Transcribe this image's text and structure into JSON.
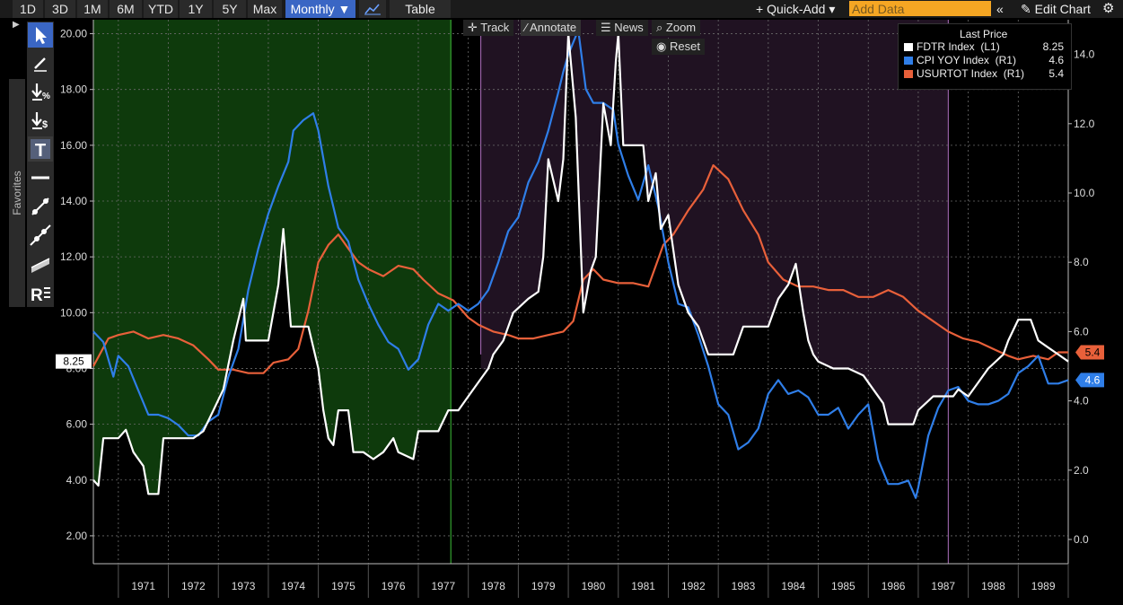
{
  "toolbar": {
    "ranges": [
      "1D",
      "3D",
      "1M",
      "6M",
      "YTD",
      "1Y",
      "5Y",
      "Max"
    ],
    "frequency": "Monthly ▼",
    "table_label": "Table",
    "quick_add": "+ Quick-Add ▾",
    "add_data_placeholder": "Add Data",
    "collapse": "«",
    "edit_chart": "✎ Edit Chart",
    "gear": "⚙"
  },
  "chart_toolbar": {
    "track": "Track",
    "annotate": "Annotate",
    "news": "News",
    "zoom": "Zoom",
    "reset": "Reset"
  },
  "palette": {
    "favorites": "Favorites"
  },
  "legend": {
    "header": "Last Price",
    "items": [
      {
        "name": "FDTR Index  (L1)",
        "value": "8.25",
        "color": "#ffffff"
      },
      {
        "name": "CPI YOY Index  (R1)",
        "value": "4.6",
        "color": "#2f7ee8"
      },
      {
        "name": "USURTOT Index  (R1)",
        "value": "5.4",
        "color": "#e8603a"
      }
    ]
  },
  "chart_data": {
    "type": "line",
    "x_range": [
      1970.5,
      1990.0
    ],
    "x_ticks": [
      "1971",
      "1972",
      "1973",
      "1974",
      "1975",
      "1976",
      "1977",
      "1978",
      "1979",
      "1980",
      "1981",
      "1982",
      "1983",
      "1984",
      "1985",
      "1986",
      "1987",
      "1988",
      "1989"
    ],
    "y_left": {
      "range": [
        1.0,
        20.5
      ],
      "ticks": [
        "2.00",
        "4.00",
        "6.00",
        "8.00",
        "10.00",
        "12.00",
        "14.00",
        "16.00",
        "18.00",
        "20.00"
      ]
    },
    "y_right": {
      "range": [
        -0.7,
        15.0
      ],
      "ticks": [
        "0.0",
        "2.0",
        "4.0",
        "6.0",
        "8.0",
        "10.0",
        "12.0",
        "14.0"
      ]
    },
    "last_value_tags": {
      "left": "8.25",
      "right_cpi": "4.6",
      "right_unemp": "5.4"
    },
    "shaded_regions": [
      {
        "x0": 1970.5,
        "x1": 1977.65,
        "color": "#0e3a0c"
      },
      {
        "x0": 1978.25,
        "x1": 1987.6,
        "color": "#201222"
      }
    ],
    "series": [
      {
        "name": "FDTR Index (L1)",
        "axis": "left",
        "color": "#ffffff",
        "points": [
          [
            1970.5,
            4.0
          ],
          [
            1970.6,
            3.8
          ],
          [
            1970.7,
            5.5
          ],
          [
            1971.0,
            5.5
          ],
          [
            1971.15,
            5.8
          ],
          [
            1971.3,
            5.0
          ],
          [
            1971.5,
            4.5
          ],
          [
            1971.6,
            3.5
          ],
          [
            1971.8,
            3.5
          ],
          [
            1971.9,
            5.5
          ],
          [
            1972.5,
            5.5
          ],
          [
            1972.7,
            5.75
          ],
          [
            1972.9,
            6.5
          ],
          [
            1973.1,
            7.25
          ],
          [
            1973.3,
            9.0
          ],
          [
            1973.5,
            10.5
          ],
          [
            1973.55,
            9.0
          ],
          [
            1974.0,
            9.0
          ],
          [
            1974.1,
            10.0
          ],
          [
            1974.2,
            11.0
          ],
          [
            1974.3,
            13.0
          ],
          [
            1974.45,
            9.5
          ],
          [
            1974.8,
            9.5
          ],
          [
            1975.0,
            8.0
          ],
          [
            1975.1,
            6.5
          ],
          [
            1975.2,
            5.5
          ],
          [
            1975.3,
            5.25
          ],
          [
            1975.4,
            6.5
          ],
          [
            1975.6,
            6.5
          ],
          [
            1975.7,
            5.0
          ],
          [
            1975.9,
            5.0
          ],
          [
            1976.1,
            4.75
          ],
          [
            1976.3,
            5.0
          ],
          [
            1976.5,
            5.5
          ],
          [
            1976.6,
            5.0
          ],
          [
            1976.9,
            4.75
          ],
          [
            1977.0,
            5.75
          ],
          [
            1977.4,
            5.75
          ],
          [
            1977.6,
            6.5
          ],
          [
            1977.8,
            6.5
          ],
          [
            1978.0,
            7.0
          ],
          [
            1978.2,
            7.5
          ],
          [
            1978.4,
            8.0
          ],
          [
            1978.5,
            8.5
          ],
          [
            1978.7,
            9.0
          ],
          [
            1978.9,
            10.0
          ],
          [
            1979.2,
            10.5
          ],
          [
            1979.4,
            10.75
          ],
          [
            1979.5,
            12.0
          ],
          [
            1979.6,
            15.5
          ],
          [
            1979.8,
            14.0
          ],
          [
            1979.9,
            15.5
          ],
          [
            1980.0,
            20.0
          ],
          [
            1980.15,
            17.0
          ],
          [
            1980.3,
            10.0
          ],
          [
            1980.45,
            11.5
          ],
          [
            1980.55,
            12.0
          ],
          [
            1980.7,
            17.5
          ],
          [
            1980.85,
            16.0
          ],
          [
            1980.95,
            19.0
          ],
          [
            1981.0,
            20.0
          ],
          [
            1981.1,
            16.0
          ],
          [
            1981.3,
            16.0
          ],
          [
            1981.5,
            16.0
          ],
          [
            1981.6,
            14.0
          ],
          [
            1981.75,
            15.0
          ],
          [
            1981.85,
            13.0
          ],
          [
            1982.0,
            13.5
          ],
          [
            1982.2,
            11.0
          ],
          [
            1982.4,
            10.0
          ],
          [
            1982.6,
            9.5
          ],
          [
            1982.8,
            8.5
          ],
          [
            1983.0,
            8.5
          ],
          [
            1983.3,
            8.5
          ],
          [
            1983.5,
            9.5
          ],
          [
            1983.8,
            9.5
          ],
          [
            1984.0,
            9.5
          ],
          [
            1984.2,
            10.5
          ],
          [
            1984.4,
            11.0
          ],
          [
            1984.55,
            11.75
          ],
          [
            1984.7,
            10.0
          ],
          [
            1984.8,
            9.0
          ],
          [
            1984.9,
            8.5
          ],
          [
            1985.0,
            8.25
          ],
          [
            1985.3,
            8.0
          ],
          [
            1985.6,
            8.0
          ],
          [
            1985.9,
            7.75
          ],
          [
            1986.1,
            7.25
          ],
          [
            1986.3,
            6.75
          ],
          [
            1986.4,
            6.0
          ],
          [
            1986.6,
            6.0
          ],
          [
            1986.9,
            6.0
          ],
          [
            1987.0,
            6.5
          ],
          [
            1987.3,
            7.0
          ],
          [
            1987.7,
            7.0
          ],
          [
            1987.8,
            7.25
          ],
          [
            1988.0,
            7.0
          ],
          [
            1988.2,
            7.5
          ],
          [
            1988.4,
            8.0
          ],
          [
            1988.7,
            8.5
          ],
          [
            1988.8,
            9.0
          ],
          [
            1989.0,
            9.75
          ],
          [
            1989.25,
            9.75
          ],
          [
            1989.4,
            9.0
          ],
          [
            1989.6,
            8.75
          ],
          [
            1989.8,
            8.5
          ],
          [
            1990.0,
            8.25
          ]
        ]
      },
      {
        "name": "CPI YOY Index (R1)",
        "axis": "right",
        "color": "#2f7ee8",
        "points": [
          [
            1970.5,
            6.0
          ],
          [
            1970.7,
            5.7
          ],
          [
            1970.9,
            4.7
          ],
          [
            1971.0,
            5.3
          ],
          [
            1971.2,
            5.0
          ],
          [
            1971.4,
            4.3
          ],
          [
            1971.6,
            3.6
          ],
          [
            1971.8,
            3.6
          ],
          [
            1972.0,
            3.5
          ],
          [
            1972.2,
            3.3
          ],
          [
            1972.4,
            3.0
          ],
          [
            1972.6,
            3.0
          ],
          [
            1972.8,
            3.4
          ],
          [
            1973.0,
            3.6
          ],
          [
            1973.2,
            4.7
          ],
          [
            1973.4,
            5.5
          ],
          [
            1973.6,
            7.2
          ],
          [
            1973.8,
            8.4
          ],
          [
            1974.0,
            9.4
          ],
          [
            1974.2,
            10.2
          ],
          [
            1974.4,
            10.9
          ],
          [
            1974.5,
            11.8
          ],
          [
            1974.7,
            12.1
          ],
          [
            1974.9,
            12.3
          ],
          [
            1975.0,
            11.8
          ],
          [
            1975.2,
            10.2
          ],
          [
            1975.4,
            9.0
          ],
          [
            1975.6,
            8.6
          ],
          [
            1975.8,
            7.5
          ],
          [
            1976.0,
            6.8
          ],
          [
            1976.2,
            6.2
          ],
          [
            1976.4,
            5.7
          ],
          [
            1976.6,
            5.5
          ],
          [
            1976.8,
            4.9
          ],
          [
            1977.0,
            5.2
          ],
          [
            1977.2,
            6.2
          ],
          [
            1977.4,
            6.8
          ],
          [
            1977.6,
            6.6
          ],
          [
            1977.8,
            6.8
          ],
          [
            1978.0,
            6.6
          ],
          [
            1978.2,
            6.8
          ],
          [
            1978.4,
            7.2
          ],
          [
            1978.6,
            8.0
          ],
          [
            1978.8,
            8.9
          ],
          [
            1979.0,
            9.3
          ],
          [
            1979.2,
            10.3
          ],
          [
            1979.4,
            10.9
          ],
          [
            1979.6,
            11.8
          ],
          [
            1979.8,
            12.9
          ],
          [
            1979.9,
            13.5
          ],
          [
            1980.0,
            14.0
          ],
          [
            1980.2,
            14.7
          ],
          [
            1980.35,
            13.0
          ],
          [
            1980.5,
            12.6
          ],
          [
            1980.7,
            12.6
          ],
          [
            1980.9,
            12.4
          ],
          [
            1981.0,
            11.4
          ],
          [
            1981.2,
            10.5
          ],
          [
            1981.4,
            9.8
          ],
          [
            1981.6,
            10.8
          ],
          [
            1981.8,
            9.6
          ],
          [
            1982.0,
            8.0
          ],
          [
            1982.2,
            6.8
          ],
          [
            1982.4,
            6.7
          ],
          [
            1982.6,
            5.9
          ],
          [
            1982.8,
            5.0
          ],
          [
            1983.0,
            3.9
          ],
          [
            1983.2,
            3.6
          ],
          [
            1983.4,
            2.6
          ],
          [
            1983.6,
            2.8
          ],
          [
            1983.8,
            3.2
          ],
          [
            1984.0,
            4.2
          ],
          [
            1984.2,
            4.6
          ],
          [
            1984.4,
            4.2
          ],
          [
            1984.6,
            4.3
          ],
          [
            1984.8,
            4.1
          ],
          [
            1985.0,
            3.6
          ],
          [
            1985.2,
            3.6
          ],
          [
            1985.4,
            3.8
          ],
          [
            1985.6,
            3.2
          ],
          [
            1985.8,
            3.6
          ],
          [
            1986.0,
            3.9
          ],
          [
            1986.2,
            2.3
          ],
          [
            1986.4,
            1.6
          ],
          [
            1986.6,
            1.6
          ],
          [
            1986.8,
            1.7
          ],
          [
            1986.95,
            1.2
          ],
          [
            1987.0,
            1.5
          ],
          [
            1987.2,
            3.0
          ],
          [
            1987.4,
            3.8
          ],
          [
            1987.6,
            4.3
          ],
          [
            1987.8,
            4.4
          ],
          [
            1988.0,
            4.0
          ],
          [
            1988.2,
            3.9
          ],
          [
            1988.4,
            3.9
          ],
          [
            1988.6,
            4.0
          ],
          [
            1988.8,
            4.2
          ],
          [
            1989.0,
            4.8
          ],
          [
            1989.2,
            5.0
          ],
          [
            1989.4,
            5.3
          ],
          [
            1989.6,
            4.5
          ],
          [
            1989.8,
            4.5
          ],
          [
            1990.0,
            4.6
          ]
        ]
      },
      {
        "name": "USURTOT Index (R1)",
        "axis": "right",
        "color": "#e8603a",
        "points": [
          [
            1970.5,
            5.0
          ],
          [
            1970.8,
            5.8
          ],
          [
            1971.0,
            5.9
          ],
          [
            1971.3,
            6.0
          ],
          [
            1971.6,
            5.8
          ],
          [
            1971.9,
            5.9
          ],
          [
            1972.2,
            5.8
          ],
          [
            1972.5,
            5.6
          ],
          [
            1972.8,
            5.2
          ],
          [
            1973.0,
            4.9
          ],
          [
            1973.3,
            4.9
          ],
          [
            1973.6,
            4.8
          ],
          [
            1973.9,
            4.8
          ],
          [
            1974.1,
            5.1
          ],
          [
            1974.4,
            5.2
          ],
          [
            1974.6,
            5.5
          ],
          [
            1974.8,
            6.6
          ],
          [
            1975.0,
            8.0
          ],
          [
            1975.2,
            8.5
          ],
          [
            1975.4,
            8.8
          ],
          [
            1975.6,
            8.4
          ],
          [
            1975.8,
            8.0
          ],
          [
            1976.0,
            7.8
          ],
          [
            1976.3,
            7.6
          ],
          [
            1976.6,
            7.9
          ],
          [
            1976.9,
            7.8
          ],
          [
            1977.1,
            7.5
          ],
          [
            1977.4,
            7.1
          ],
          [
            1977.7,
            6.9
          ],
          [
            1978.0,
            6.4
          ],
          [
            1978.2,
            6.2
          ],
          [
            1978.5,
            6.0
          ],
          [
            1978.8,
            5.9
          ],
          [
            1979.0,
            5.8
          ],
          [
            1979.3,
            5.8
          ],
          [
            1979.6,
            5.9
          ],
          [
            1979.9,
            6.0
          ],
          [
            1980.1,
            6.3
          ],
          [
            1980.3,
            7.5
          ],
          [
            1980.5,
            7.8
          ],
          [
            1980.7,
            7.5
          ],
          [
            1981.0,
            7.4
          ],
          [
            1981.3,
            7.4
          ],
          [
            1981.6,
            7.3
          ],
          [
            1981.9,
            8.5
          ],
          [
            1982.1,
            8.8
          ],
          [
            1982.4,
            9.5
          ],
          [
            1982.7,
            10.1
          ],
          [
            1982.9,
            10.8
          ],
          [
            1983.2,
            10.4
          ],
          [
            1983.5,
            9.5
          ],
          [
            1983.8,
            8.8
          ],
          [
            1984.0,
            8.0
          ],
          [
            1984.3,
            7.5
          ],
          [
            1984.6,
            7.3
          ],
          [
            1984.9,
            7.3
          ],
          [
            1985.2,
            7.2
          ],
          [
            1985.5,
            7.2
          ],
          [
            1985.8,
            7.0
          ],
          [
            1986.1,
            7.0
          ],
          [
            1986.4,
            7.2
          ],
          [
            1986.7,
            7.0
          ],
          [
            1987.0,
            6.6
          ],
          [
            1987.3,
            6.3
          ],
          [
            1987.6,
            6.0
          ],
          [
            1987.9,
            5.8
          ],
          [
            1988.2,
            5.7
          ],
          [
            1988.5,
            5.5
          ],
          [
            1988.8,
            5.3
          ],
          [
            1989.0,
            5.2
          ],
          [
            1989.3,
            5.3
          ],
          [
            1989.6,
            5.2
          ],
          [
            1989.8,
            5.4
          ],
          [
            1990.0,
            5.4
          ]
        ]
      }
    ]
  }
}
